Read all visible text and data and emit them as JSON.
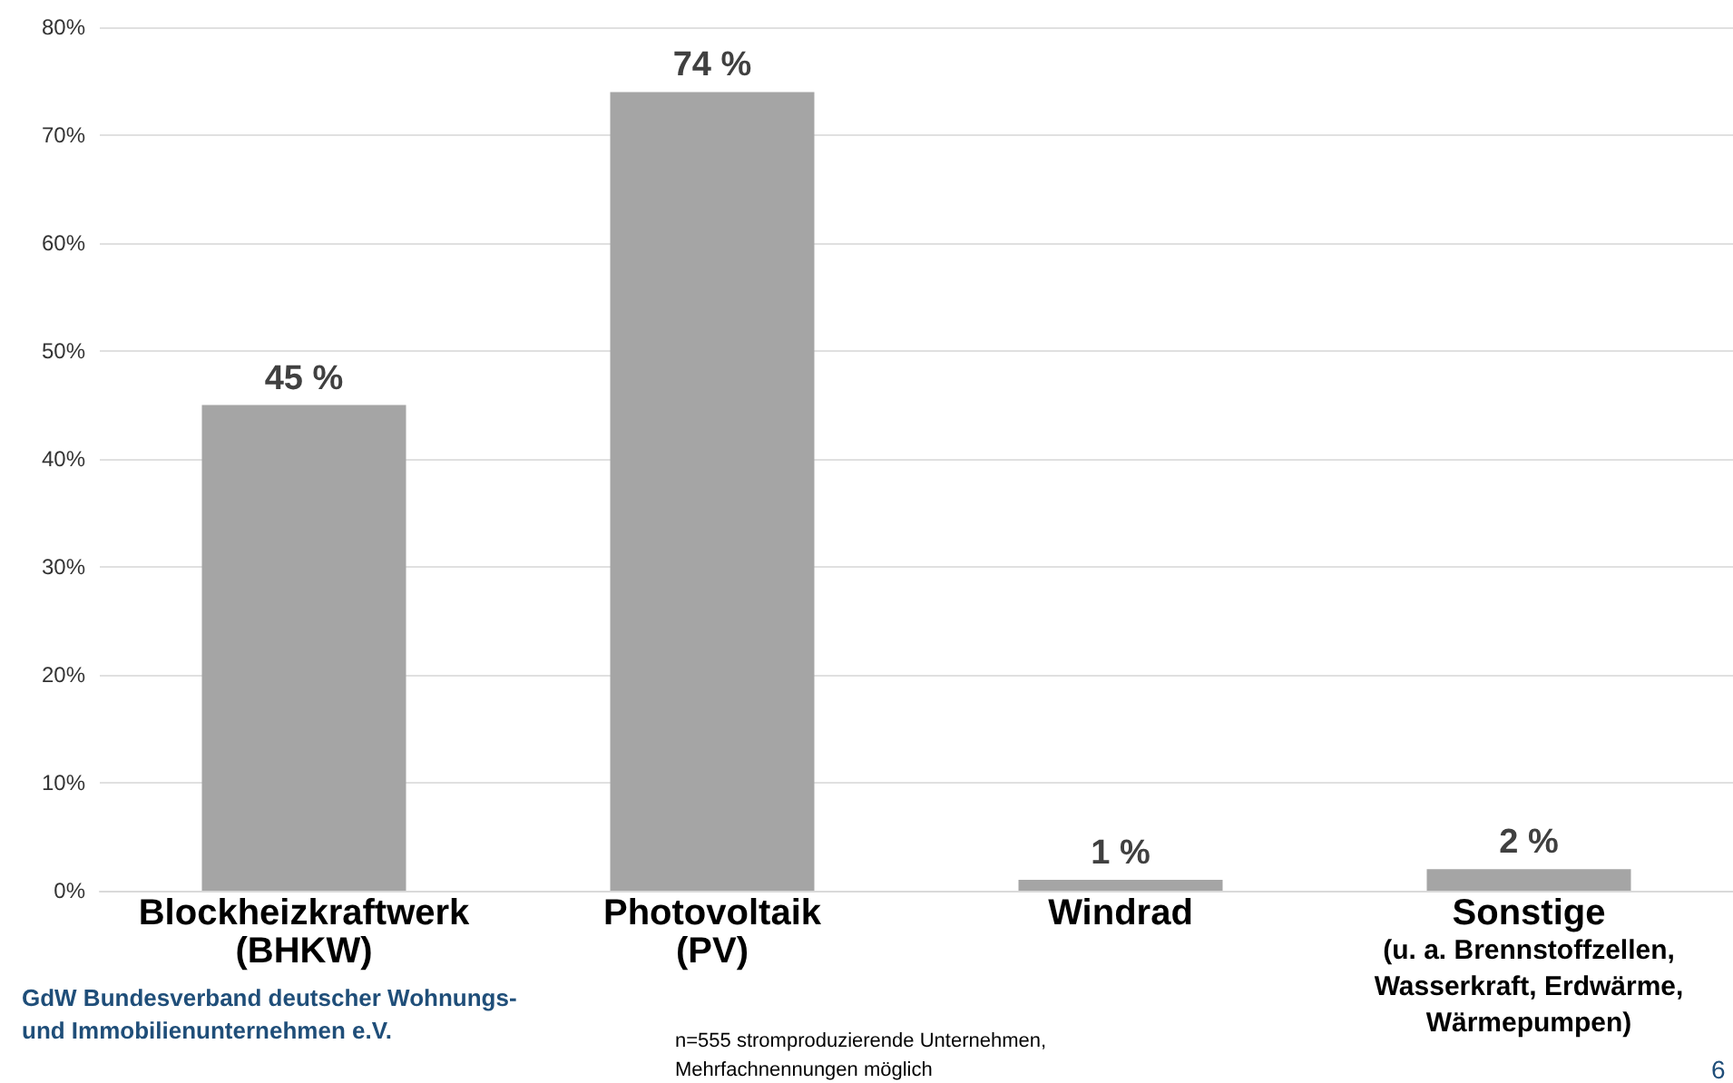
{
  "chart_data": {
    "type": "bar",
    "categories": [
      "Blockheizkraftwerk\n(BHKW)",
      "Photovoltaik\n(PV)",
      "Windrad",
      "Sonstige\n(u. a. Brennstoffzellen,\nWasserkraft, Erdwärme,\nWärmepumpen)"
    ],
    "values": [
      45,
      74,
      1,
      2
    ],
    "value_labels": [
      "45 %",
      "74 %",
      "1 %",
      "2 %"
    ],
    "color": "#a5a5a5",
    "ylim": [
      0,
      80
    ],
    "yticks": [
      {
        "value": 0,
        "label": "0%"
      },
      {
        "value": 10,
        "label": "10%"
      },
      {
        "value": 20,
        "label": "20%"
      },
      {
        "value": 30,
        "label": "30%"
      },
      {
        "value": 40,
        "label": "40%"
      },
      {
        "value": 50,
        "label": "50%"
      },
      {
        "value": 60,
        "label": "60%"
      },
      {
        "value": 70,
        "label": "70%"
      },
      {
        "value": 80,
        "label": "80%"
      }
    ],
    "grid": "y",
    "annotations": [
      "GdW Bundesverband deutscher Wohnungs-\nund Immobilienunternehmen e.V.",
      "n=555 stromproduzierende Unternehmen,\nMehrfachnennungen möglich",
      "6"
    ]
  }
}
